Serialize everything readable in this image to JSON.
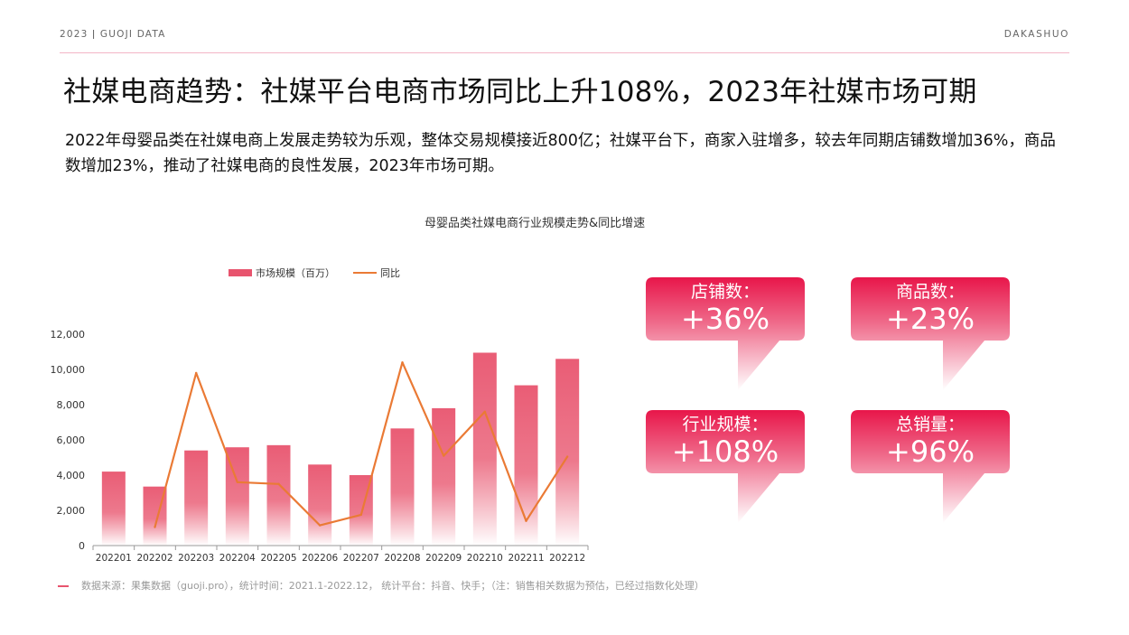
{
  "header": {
    "left": "2023 ǀ GUOJI DATA",
    "right": "DAKASHUO"
  },
  "title": "社媒电商趋势：社媒平台电商市场同比上升108%，2023年社媒市场可期",
  "description": "2022年母婴品类在社媒电商上发展走势较为乐观，整体交易规模接近800亿；社媒平台下，商家入驻增多，较去年同期店铺数增加36%，商品数增加23%，推动了社媒电商的良性发展，2023年市场可期。",
  "source": "数据来源：果集数据（guoji.pro），统计时间：2021.1-2022.12，  统计平台：抖音、快手；（注：销售相关数据为预估，已经过指数化处理）",
  "colors": {
    "bar": "#e8546e",
    "line": "#ea7a35",
    "card": "#e8164a",
    "accent_line": "#f3b6c6"
  },
  "cards": [
    {
      "label": "店铺数：",
      "value": "+36%"
    },
    {
      "label": "商品数：",
      "value": "+23%"
    },
    {
      "label": "行业规模：",
      "value": "+108%"
    },
    {
      "label": "总销量：",
      "value": "+96%"
    }
  ],
  "chart_data": {
    "type": "bar",
    "title": "母婴品类社媒电商行业规模走势&同比增速",
    "categories": [
      "202201",
      "202202",
      "202203",
      "202204",
      "202205",
      "202206",
      "202207",
      "202208",
      "202209",
      "202210",
      "202211",
      "202212"
    ],
    "series": [
      {
        "name": "市场规模（百万）",
        "type": "bar",
        "values": [
          4200,
          3350,
          5400,
          5580,
          5700,
          4600,
          4000,
          6650,
          7800,
          10950,
          9100,
          10600
        ]
      },
      {
        "name": "同比",
        "type": "line",
        "values": [
          null,
          1050,
          9800,
          3600,
          3500,
          1150,
          1750,
          10400,
          5100,
          7600,
          1400,
          5050
        ]
      }
    ],
    "yticks": [
      "0",
      "2,000",
      "4,000",
      "6,000",
      "8,000",
      "10,000",
      "12,000"
    ],
    "ylim": [
      0,
      12000
    ],
    "legend": "top"
  }
}
